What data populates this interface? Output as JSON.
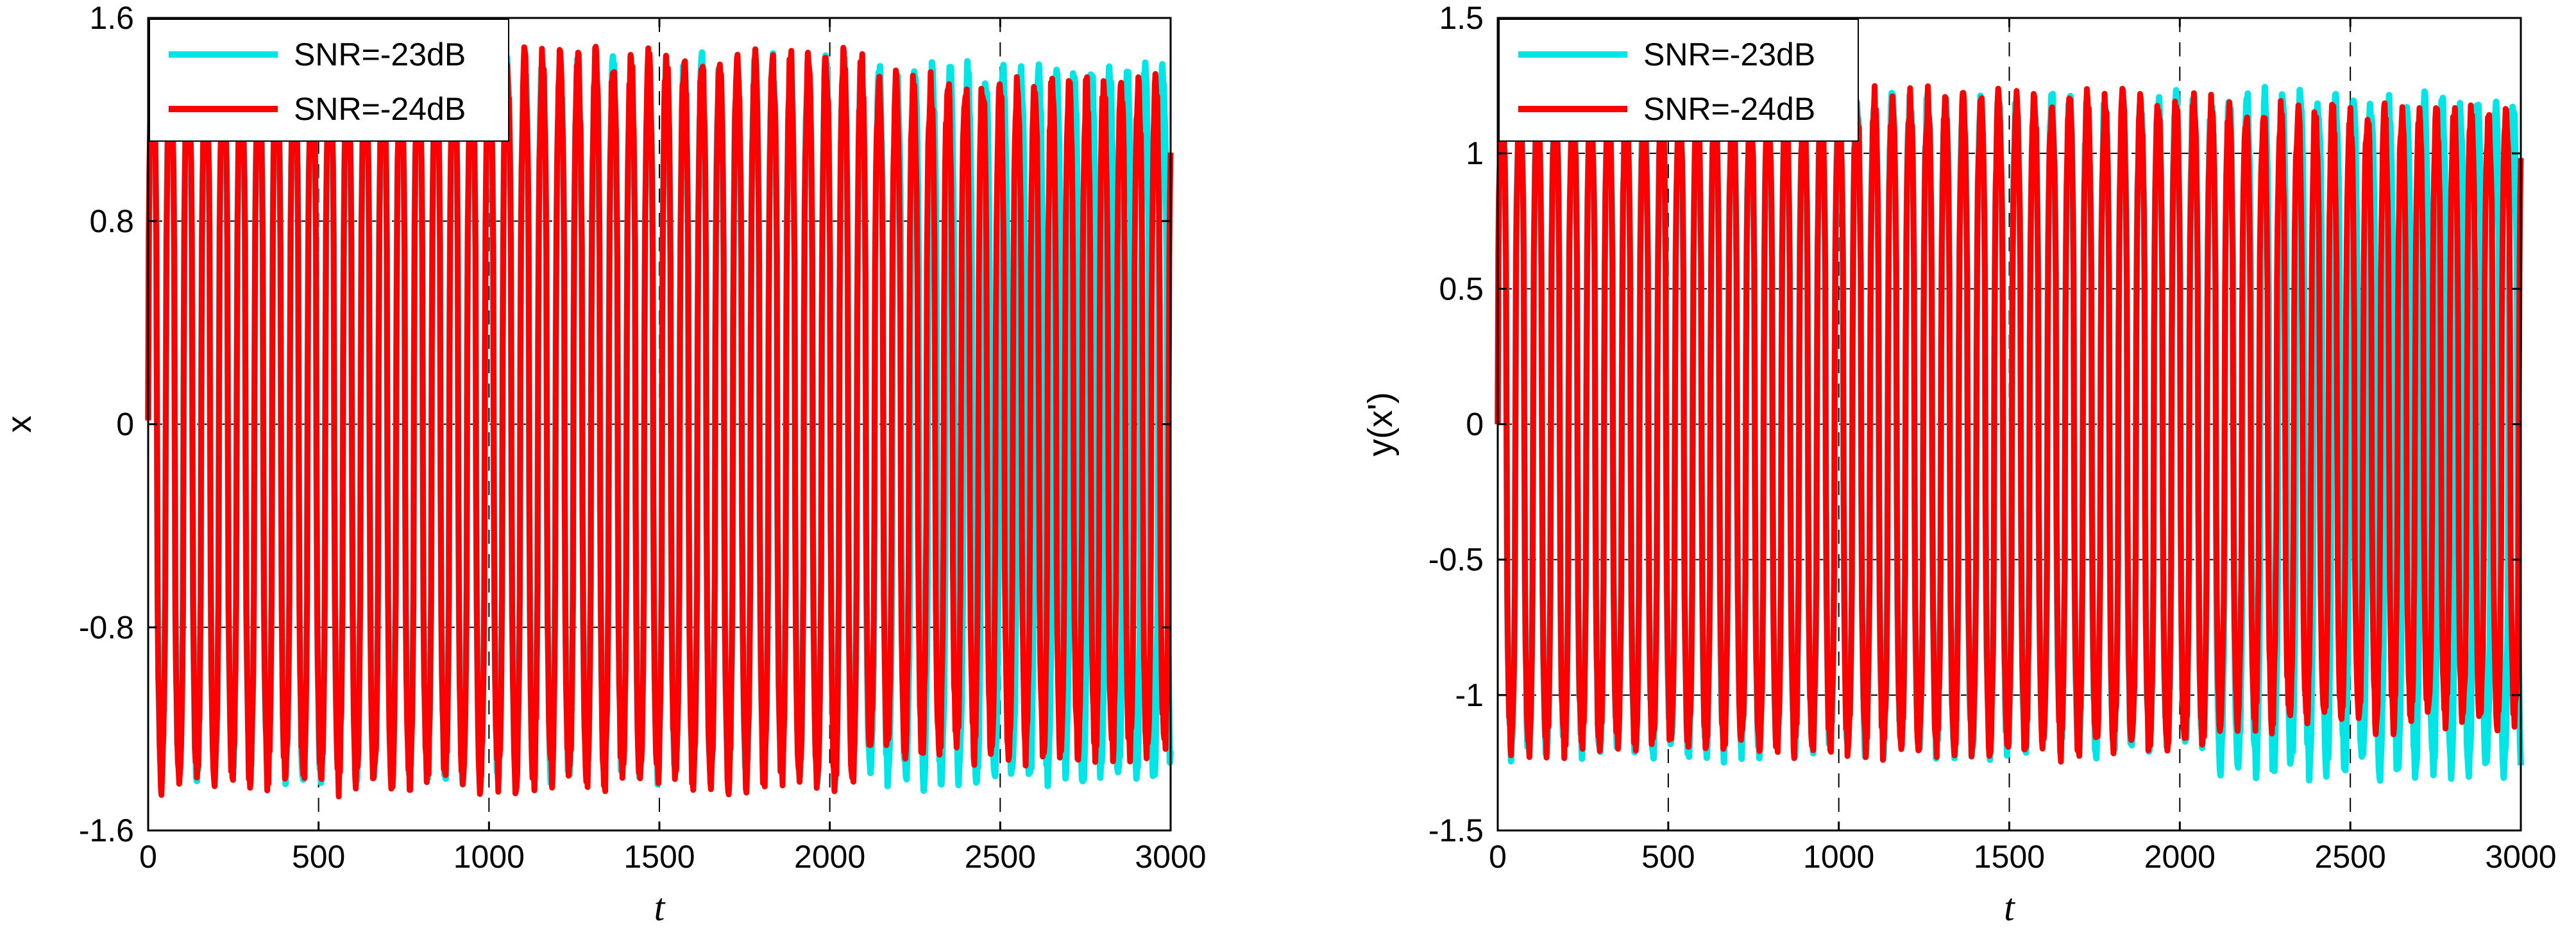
{
  "chart_data": [
    {
      "type": "line",
      "xlabel": "t",
      "ylabel": "x",
      "xlim": [
        0,
        3000
      ],
      "ylim": [
        -1.6,
        1.6
      ],
      "xticks": [
        0,
        500,
        1000,
        1500,
        2000,
        2500,
        3000
      ],
      "xtick_labels": [
        "0",
        "500",
        "1000",
        "1500",
        "2000",
        "2500",
        "3000"
      ],
      "yticks": [
        -1.6,
        -0.8,
        0,
        0.8,
        1.6
      ],
      "ytick_labels": [
        "-1.6",
        "-0.8",
        "0",
        "0.8",
        "1.6"
      ],
      "grid": true,
      "legend": "top-left",
      "series": [
        {
          "name": "SNR=-23dB",
          "color": "#00e5e5",
          "oscillation_period": 52,
          "segments": [
            {
              "t_start": 0,
              "t_end": 2100,
              "min": -1.43,
              "max": 1.47
            },
            {
              "t_start": 2100,
              "t_end": 3000,
              "min": -1.45,
              "max": 1.44
            }
          ]
        },
        {
          "name": "SNR=-24dB",
          "color": "#ff0000",
          "oscillation_period": 52,
          "segments": [
            {
              "t_start": 0,
              "t_end": 2100,
              "min": -1.47,
              "max": 1.5
            },
            {
              "t_start": 2100,
              "t_end": 3000,
              "min": -1.35,
              "max": 1.4
            }
          ]
        }
      ]
    },
    {
      "type": "line",
      "xlabel": "t",
      "ylabel": "y(x')",
      "xlim": [
        0,
        3000
      ],
      "ylim": [
        -1.5,
        1.5
      ],
      "xticks": [
        0,
        500,
        1000,
        1500,
        2000,
        2500,
        3000
      ],
      "xtick_labels": [
        "0",
        "500",
        "1000",
        "1500",
        "2000",
        "2500",
        "3000"
      ],
      "yticks": [
        -1.5,
        -1,
        -0.5,
        0,
        0.5,
        1,
        1.5
      ],
      "ytick_labels": [
        "-1.5",
        "-1",
        "-0.5",
        "0",
        "0.5",
        "1",
        "1.5"
      ],
      "grid": true,
      "legend": "top-left",
      "series": [
        {
          "name": "SNR=-23dB",
          "color": "#00e5e5",
          "oscillation_period": 52,
          "segments": [
            {
              "t_start": 0,
              "t_end": 2100,
              "min": -1.25,
              "max": 1.25
            },
            {
              "t_start": 2100,
              "t_end": 3000,
              "min": -1.32,
              "max": 1.25
            }
          ]
        },
        {
          "name": "SNR=-24dB",
          "color": "#ff0000",
          "oscillation_period": 52,
          "segments": [
            {
              "t_start": 0,
              "t_end": 2100,
              "min": -1.25,
              "max": 1.25
            },
            {
              "t_start": 2100,
              "t_end": 3000,
              "min": -1.15,
              "max": 1.2
            }
          ]
        }
      ]
    }
  ]
}
